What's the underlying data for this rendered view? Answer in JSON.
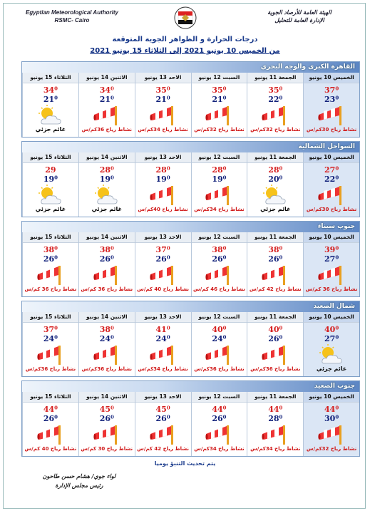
{
  "header": {
    "en_title": "Egyptian Meteorological Authority",
    "en_sub": "RSMC- Cairo",
    "ar_title": "الهيئة العامة للأرصاد الجوية",
    "ar_sub": "الإدارة العامة للتحليل",
    "heading": "درجات الحرارة و الظواهر الجوية المتوقعة",
    "period": "من الخميس 10 يونيو 2021 إلى الثلاثاء 15 يونيو 2021"
  },
  "days": [
    "الخميس 10 يونيو",
    "الجمعة 11 يونيو",
    "السبت 12 يونيو",
    "الاحد 13 يونيو",
    "الاثنين 14 يونيو",
    "الثلاثاء 15 يونيو"
  ],
  "regions": [
    {
      "name": "القاهرة الكبرى والوجه البحري",
      "forecasts": [
        {
          "max": "37⁰",
          "min": "23⁰",
          "text": "نشاط رياح 30كم/س"
        },
        {
          "max": "35⁰",
          "min": "22⁰",
          "text": "نشاط رياح 32كم/س"
        },
        {
          "max": "35⁰",
          "min": "21⁰",
          "text": "نشاط رياح 32كم/س"
        },
        {
          "max": "35⁰",
          "min": "21⁰",
          "text": "نشاط رياح 34كم/س"
        },
        {
          "max": "34⁰",
          "min": "21⁰",
          "text": "نشاط رياح 36كم/س"
        },
        {
          "max": "34⁰",
          "min": "21⁰",
          "text": "غائم جزئي"
        }
      ]
    },
    {
      "name": "السواحل الشمالية",
      "forecasts": [
        {
          "max": "27⁰",
          "min": "22⁰",
          "text": "نشاط رياح 30كم/س"
        },
        {
          "max": "28⁰",
          "min": "20⁰",
          "text": "غائم جزئي"
        },
        {
          "max": "28⁰",
          "min": "19⁰",
          "text": "نشاط رياح 34كم/س"
        },
        {
          "max": "28⁰",
          "min": "19⁰",
          "text": "نشاط رياح 40كم/س"
        },
        {
          "max": "28⁰",
          "min": "19⁰",
          "text": "غائم جزئي"
        },
        {
          "max": "29",
          "min": "19⁰",
          "text": "غائم جزئي"
        }
      ]
    },
    {
      "name": "جنوب سيناء",
      "forecasts": [
        {
          "max": "39⁰",
          "min": "27⁰",
          "text": "نشاط رياح 36 كم/س"
        },
        {
          "max": "38⁰",
          "min": "26⁰",
          "text": "نشاط رياح 42 كم/س"
        },
        {
          "max": "38⁰",
          "min": "26⁰",
          "text": "نشاط رياح 46 كم/س"
        },
        {
          "max": "37⁰",
          "min": "26⁰",
          "text": "نشاط رياح 40 كم/س"
        },
        {
          "max": "38⁰",
          "min": "26⁰",
          "text": "نشاط رياح 36 كم/س"
        },
        {
          "max": "38⁰",
          "min": "26⁰",
          "text": "نشاط رياح 36 كم/س"
        }
      ]
    },
    {
      "name": "شمال الصعيد",
      "forecasts": [
        {
          "max": "40⁰",
          "min": "27⁰",
          "text": "غائم جزئي"
        },
        {
          "max": "40⁰",
          "min": "26⁰",
          "text": "نشاط رياح 36كم/س"
        },
        {
          "max": "40⁰",
          "min": "24⁰",
          "text": "نشاط رياح 36كم/س"
        },
        {
          "max": "41⁰",
          "min": "24⁰",
          "text": "نشاط رياح 34كم/س"
        },
        {
          "max": "38⁰",
          "min": "24⁰",
          "text": "نشاط رياح 36كم/س"
        },
        {
          "max": "37⁰",
          "min": "24⁰",
          "text": "نشاط رياح 36كم/س"
        }
      ]
    },
    {
      "name": "جنوب الصعيد",
      "forecasts": [
        {
          "max": "44⁰",
          "min": "30⁰",
          "text": "نشاط رياح 32كم/س"
        },
        {
          "max": "44⁰",
          "min": "28⁰",
          "text": "نشاط رياح 34كم/س"
        },
        {
          "max": "44⁰",
          "min": "26⁰",
          "text": "نشاط رياح 34كم/س"
        },
        {
          "max": "45⁰",
          "min": "26⁰",
          "text": "نشاط رياح 42 كم/س"
        },
        {
          "max": "45⁰",
          "min": "26⁰",
          "text": "نشاط رياح 30 كم/س"
        },
        {
          "max": "44⁰",
          "min": "26⁰",
          "text": "نشاط رياح 40 كم/س"
        }
      ]
    }
  ],
  "footer": {
    "note": "يتم تحديث التنبؤ يوميا",
    "signature": "لواء جوي/ هشام حسن طاحون",
    "position": "رئيس مجلس الإدارة"
  }
}
